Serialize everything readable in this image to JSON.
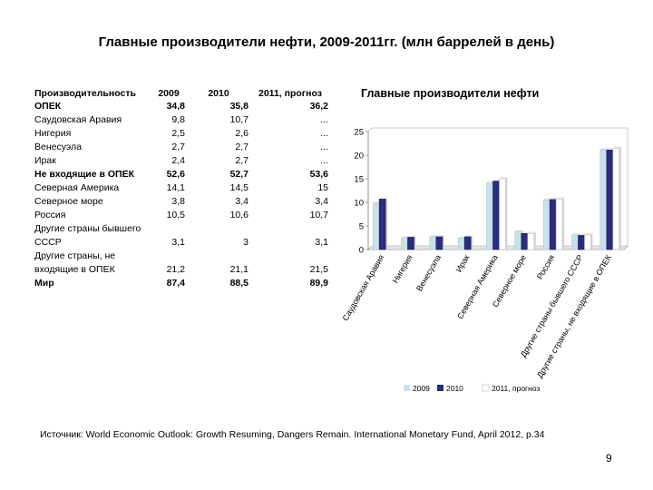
{
  "slide": {
    "title": "Главные производители нефти, 2009-2011гг. (млн баррелей в день)",
    "source": "Источник: World Economic Outlook: Growth Resuming, Dangers Remain.  International Monetary Fund, April 2012, p.34",
    "page_number": "9"
  },
  "table": {
    "headers": [
      "Производительность",
      "2009",
      "2010",
      "2011, прогноз"
    ],
    "rows": [
      {
        "label": "ОПЕК",
        "v2009": "34,8",
        "v2010": "35,8",
        "v2011": "36,2",
        "bold": true
      },
      {
        "label": "Саудовская Аравия",
        "v2009": "9,8",
        "v2010": "10,7",
        "v2011": "...",
        "bold": false
      },
      {
        "label": "Нигерия",
        "v2009": "2,5",
        "v2010": "2,6",
        "v2011": "...",
        "bold": false
      },
      {
        "label": "Венесуэла",
        "v2009": "2,7",
        "v2010": "2,7",
        "v2011": "...",
        "bold": false
      },
      {
        "label": "Ирак",
        "v2009": "2,4",
        "v2010": "2,7",
        "v2011": "...",
        "bold": false
      },
      {
        "label": "Не входящие в ОПЕК",
        "v2009": "52,6",
        "v2010": "52,7",
        "v2011": "53,6",
        "bold": true
      },
      {
        "label": "Северная Америка",
        "v2009": "14,1",
        "v2010": "14,5",
        "v2011": "15",
        "bold": false
      },
      {
        "label": "Северное море",
        "v2009": "3,8",
        "v2010": "3,4",
        "v2011": "3,4",
        "bold": false
      },
      {
        "label": "Россия",
        "v2009": "10,5",
        "v2010": "10,6",
        "v2011": "10,7",
        "bold": false
      },
      {
        "label": "Другие страны бывшего СССР",
        "v2009": "3,1",
        "v2010": "3",
        "v2011": "3,1",
        "bold": false
      },
      {
        "label": "Другие страны, не входящие в ОПЕК",
        "v2009": "21,2",
        "v2010": "21,1",
        "v2011": "21,5",
        "bold": false
      },
      {
        "label": "Мир",
        "v2009": "87,4",
        "v2010": "88,5",
        "v2011": "89,9",
        "bold": true
      }
    ]
  },
  "chart_data": {
    "type": "bar",
    "title": "Главные производители нефти",
    "categories": [
      "Саудовская Аравия",
      "Нигерия",
      "Венесуэла",
      "Ирак",
      "Северная Америка",
      "Северное море",
      "Россия",
      "Другие страны бывшего СССР",
      "Другие страны, не входящие в ОПЕК"
    ],
    "series": [
      {
        "name": "2009",
        "values": [
          9.8,
          2.5,
          2.7,
          2.4,
          14.1,
          3.8,
          10.5,
          3.1,
          21.2
        ],
        "color": "#c9e1ea"
      },
      {
        "name": "2010",
        "values": [
          10.7,
          2.6,
          2.7,
          2.7,
          14.5,
          3.4,
          10.6,
          3.0,
          21.1
        ],
        "color": "#2a2c7e"
      },
      {
        "name": "2011, прогноз",
        "values": [
          null,
          null,
          null,
          null,
          15.0,
          3.4,
          10.7,
          3.1,
          21.5
        ],
        "color": "#ffffff"
      }
    ],
    "yticks": [
      "0",
      "5",
      "10",
      "15",
      "20",
      "25"
    ],
    "ylim": [
      0,
      25
    ],
    "xlabel": "",
    "ylabel": "",
    "grid": false,
    "legend_position": "bottom"
  }
}
